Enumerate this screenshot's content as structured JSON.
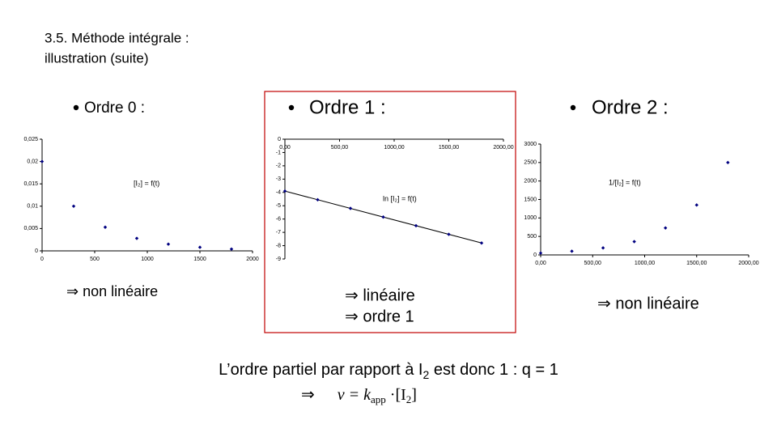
{
  "header": {
    "title_lines": [
      "3.5. Méthode intégrale :",
      "illustration (suite)"
    ]
  },
  "bullets": [
    "Ordre 0 :",
    "Ordre 1 :",
    "Ordre 2 :"
  ],
  "conclusions": [
    [
      "⇒ non linéaire"
    ],
    [
      "⇒ linéaire",
      "⇒ ordre 1"
    ],
    [
      "⇒ non linéaire"
    ]
  ],
  "summary": [
    "L’ordre partiel par rapport à I",
    "2",
    " est donc 1 : q = 1"
  ],
  "formula": [
    "⇒",
    "v = k",
    "app",
    " ·[I",
    "2",
    "]"
  ],
  "chart_data": [
    {
      "type": "scatter",
      "annotation": "[I₂] = f(t)",
      "x": [
        0,
        300,
        600,
        900,
        1200,
        1500,
        1800
      ],
      "series": [
        {
          "color": "#000080",
          "values": [
            0.02,
            0.01,
            0.0053,
            0.0028,
            0.0015,
            0.0008,
            0.0004
          ]
        }
      ],
      "xlim": [
        0,
        2000
      ],
      "xticks": [
        0,
        500,
        1000,
        1500,
        2000
      ],
      "ylim": [
        0,
        0.025
      ],
      "yticks": [
        0,
        {
          "value": 0.005,
          "label": "0,005"
        },
        {
          "value": 0.01,
          "label": "0,01"
        },
        {
          "value": 0.015,
          "label": "0,015"
        },
        {
          "value": 0.02,
          "label": "0,02"
        },
        {
          "value": 0.025,
          "label": "0,025"
        }
      ],
      "trendline": false
    },
    {
      "type": "scatter",
      "annotation": "ln [I₂] = f(t)",
      "x": [
        0,
        300,
        600,
        900,
        1200,
        1500,
        1800
      ],
      "series": [
        {
          "color": "#000080",
          "values": [
            -3.9,
            -4.55,
            -5.2,
            -5.85,
            -6.5,
            -7.15,
            -7.8
          ]
        }
      ],
      "xlim": [
        0,
        2000
      ],
      "xticks": [
        {
          "value": 0,
          "label": "0,00"
        },
        {
          "value": 500,
          "label": "500,00"
        },
        {
          "value": 1000,
          "label": "1000,00"
        },
        {
          "value": 1500,
          "label": "1500,00"
        },
        {
          "value": 2000,
          "label": "2000,00"
        }
      ],
      "ylim": [
        -9,
        0
      ],
      "yticks": [
        0,
        -1,
        -2,
        -3,
        -4,
        -5,
        -6,
        -7,
        -8,
        -9
      ],
      "trendline": true
    },
    {
      "type": "scatter",
      "annotation": "1/[I₂] = f(t)",
      "x": [
        0,
        300,
        600,
        900,
        1200,
        1500,
        1800
      ],
      "series": [
        {
          "color": "#000080",
          "values": [
            50,
            100,
            190,
            360,
            730,
            1350,
            2500
          ]
        }
      ],
      "xlim": [
        0,
        2000
      ],
      "xticks": [
        {
          "value": 0,
          "label": "0,00"
        },
        {
          "value": 500,
          "label": "500,00"
        },
        {
          "value": 1000,
          "label": "1000,00"
        },
        {
          "value": 1500,
          "label": "1500,00"
        },
        {
          "value": 2000,
          "label": "2000,00"
        }
      ],
      "ylim": [
        0,
        3000
      ],
      "yticks": [
        0,
        500,
        1000,
        1500,
        2000,
        2500,
        3000
      ],
      "trendline": false
    }
  ]
}
